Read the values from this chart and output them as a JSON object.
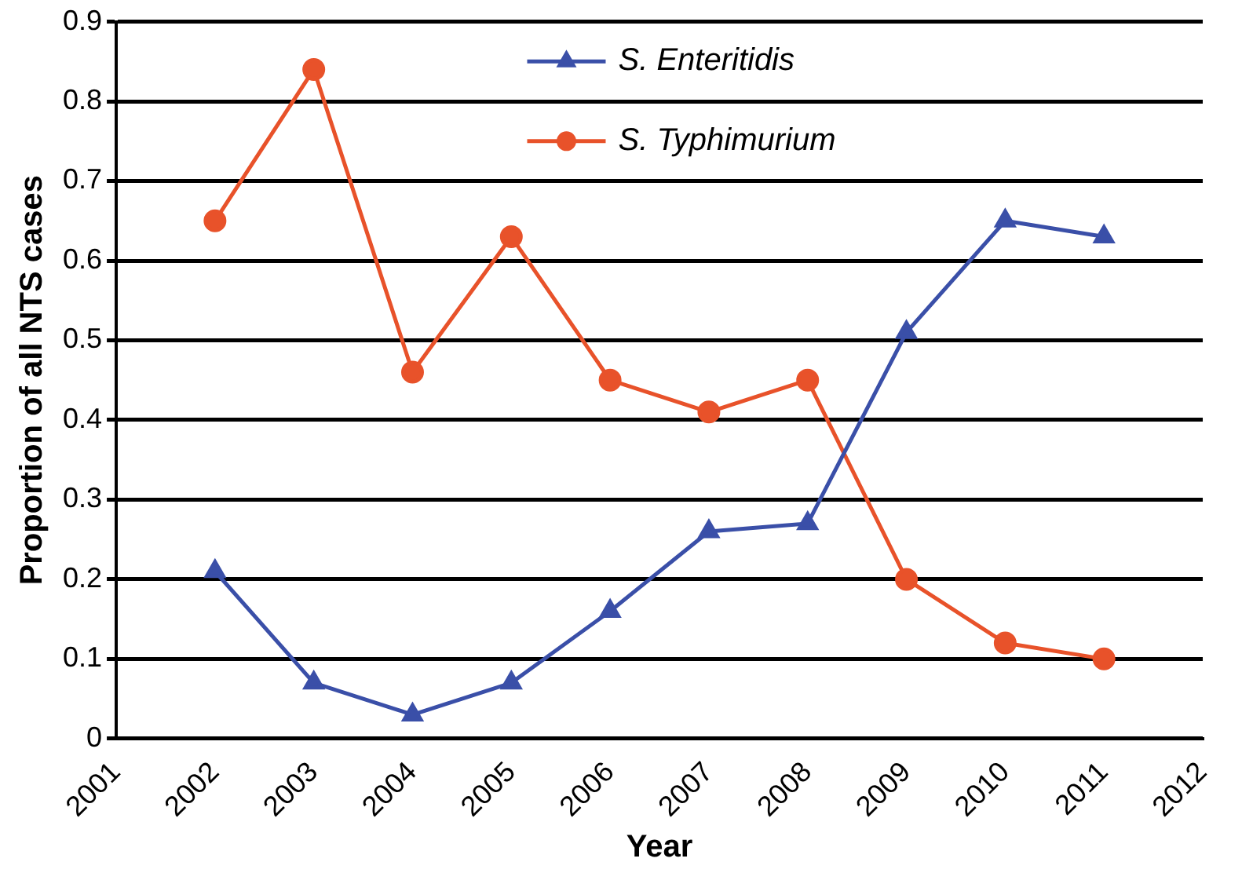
{
  "chart_data": {
    "type": "line",
    "xlabel": "Year",
    "ylabel": "Proportion of all NTS cases",
    "x": [
      2002,
      2003,
      2004,
      2005,
      2006,
      2007,
      2008,
      2009,
      2010,
      2011
    ],
    "series": [
      {
        "name": "S. Enteritidis",
        "color": "#3a4fa8",
        "marker": "triangle",
        "values": [
          0.21,
          0.07,
          0.03,
          0.07,
          0.16,
          0.26,
          0.27,
          0.51,
          0.65,
          0.63
        ]
      },
      {
        "name": "S. Typhimurium",
        "color": "#e8522a",
        "marker": "circle",
        "values": [
          0.65,
          0.84,
          0.46,
          0.63,
          0.45,
          0.41,
          0.45,
          0.2,
          0.12,
          0.1
        ]
      }
    ],
    "xlim": [
      2001,
      2012
    ],
    "xticks": [
      2001,
      2002,
      2003,
      2004,
      2005,
      2006,
      2007,
      2008,
      2009,
      2010,
      2011,
      2012
    ],
    "ylim": [
      0,
      0.9
    ],
    "yticks": [
      0,
      0.1,
      0.2,
      0.3,
      0.4,
      0.5,
      0.6,
      0.7,
      0.8,
      0.9
    ],
    "grid": "y",
    "legend": "top"
  }
}
